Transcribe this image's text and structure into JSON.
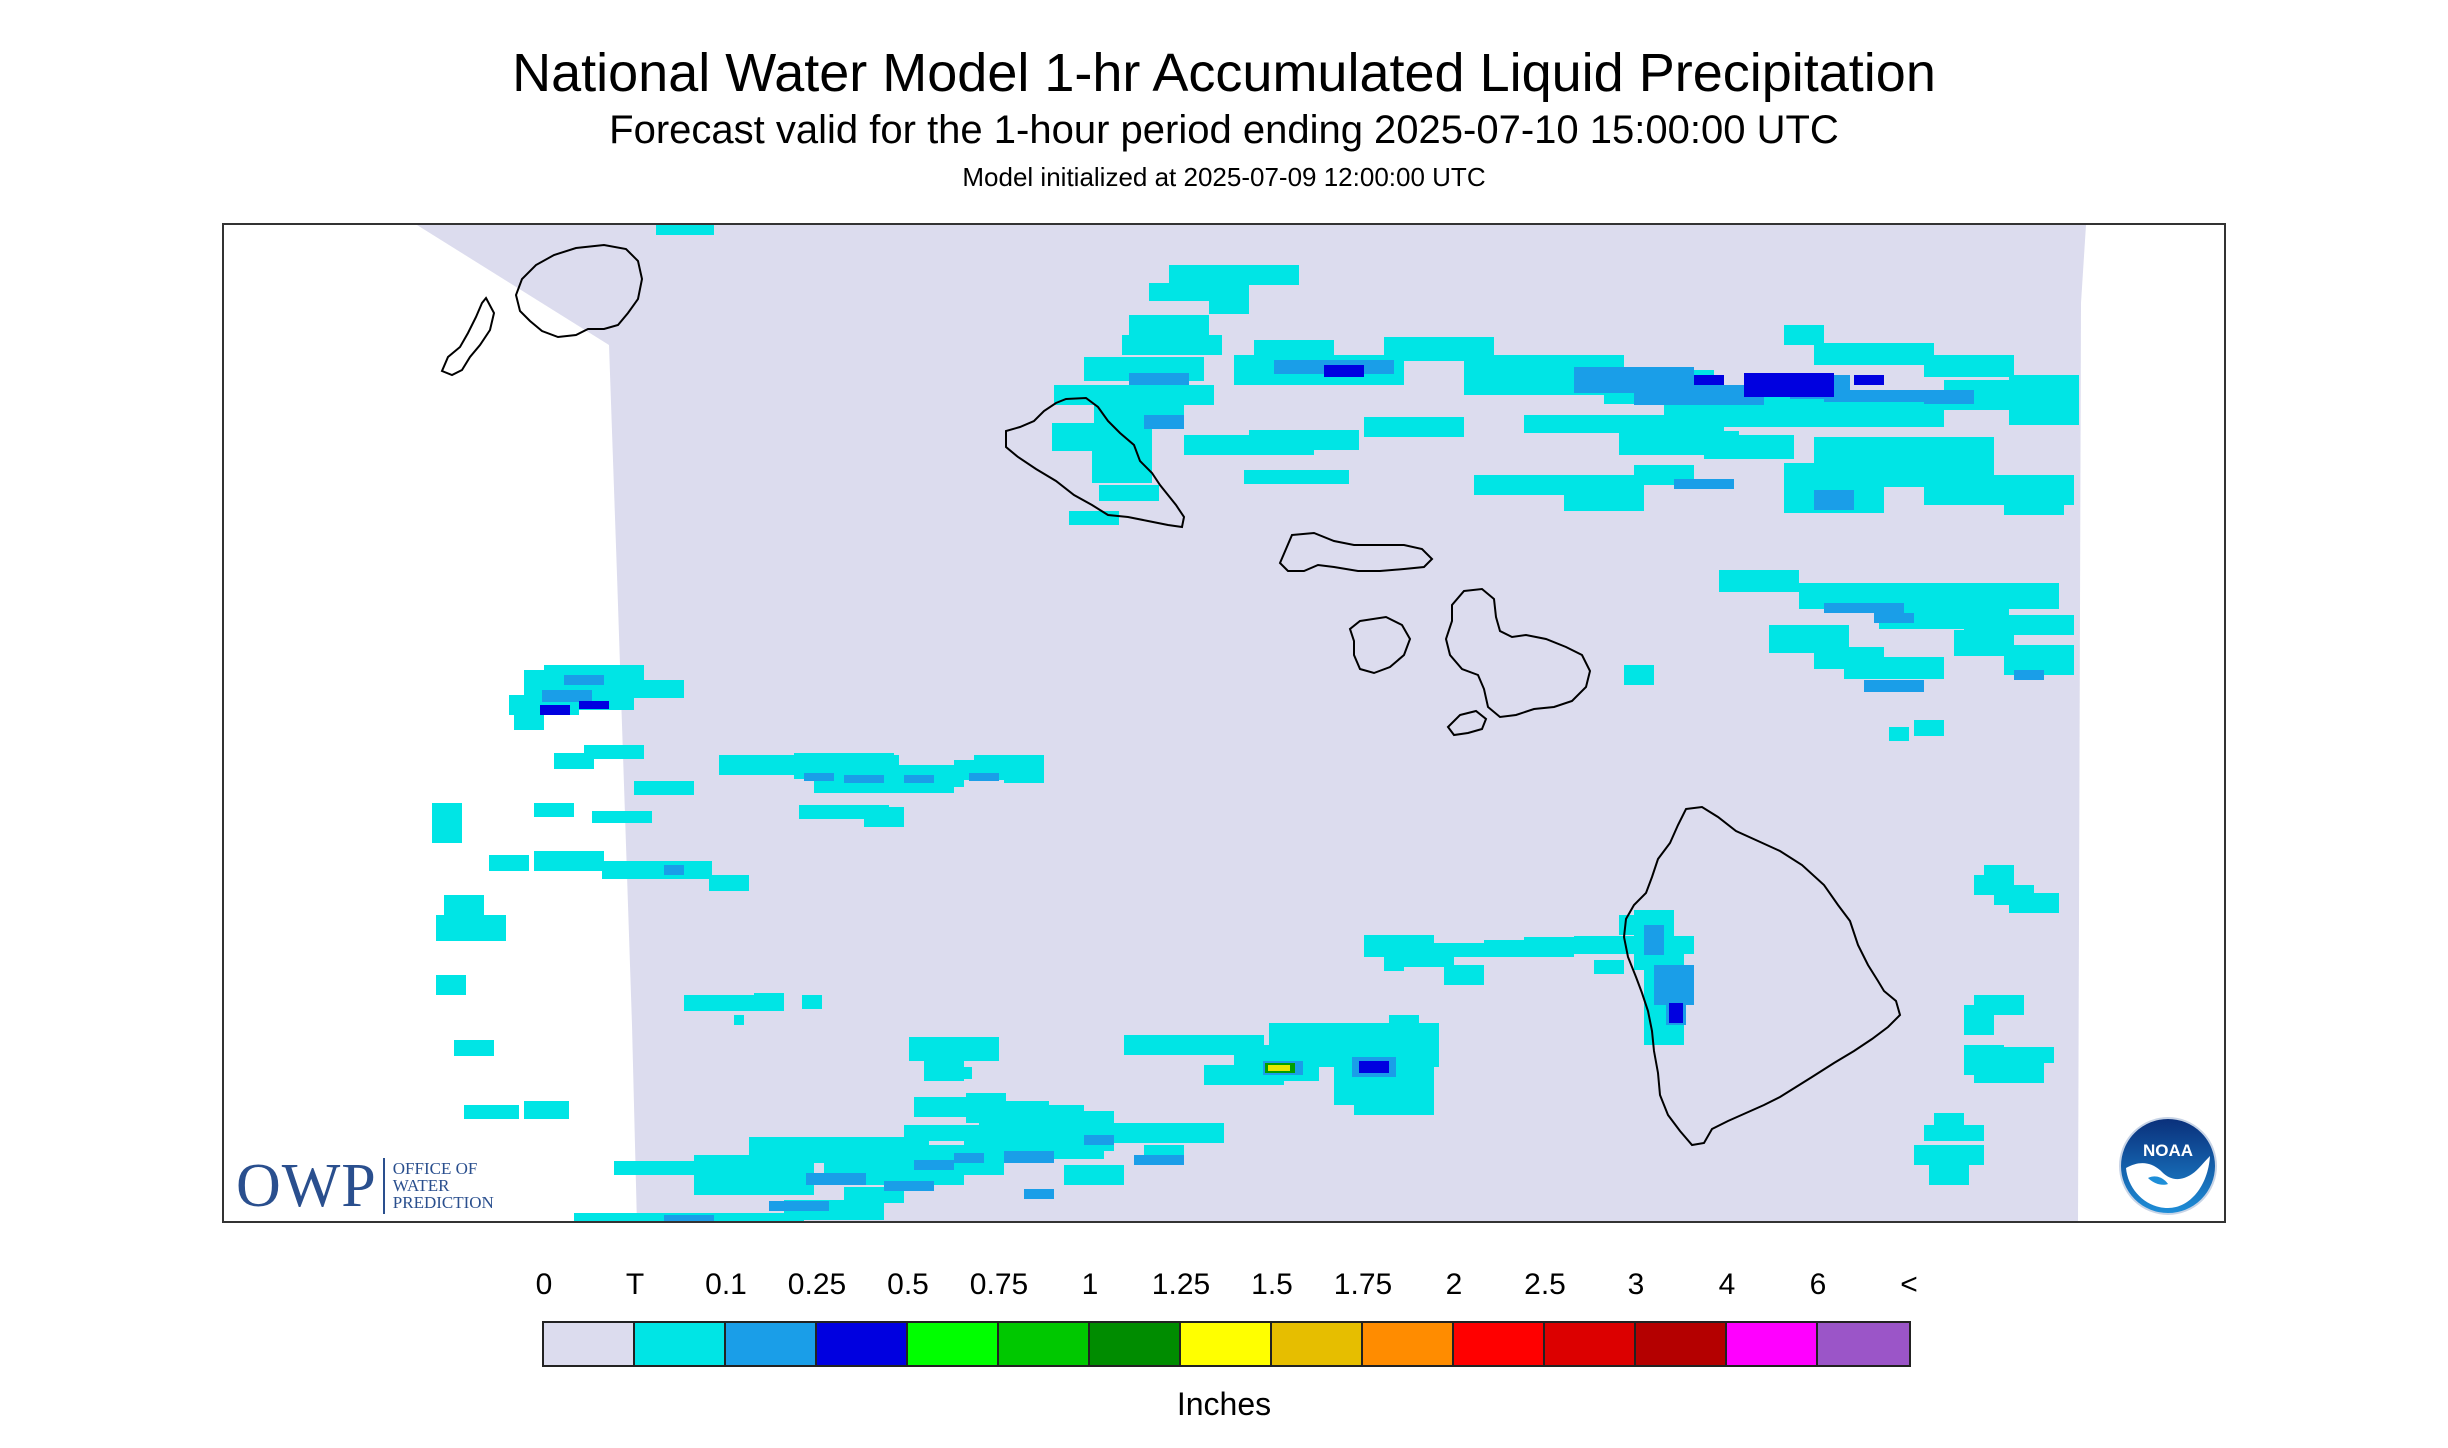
{
  "header": {
    "title": "National Water Model 1-hr Accumulated Liquid Precipitation",
    "subtitle": "Forecast valid for the 1-hour period ending 2025-07-10 15:00:00 UTC",
    "init_text": "Model initialized at 2025-07-09 12:00:00 UTC"
  },
  "map": {
    "region": "Hawaiian Islands",
    "background_color": "#dcdcee",
    "coastline_color": "#000000",
    "precip_colors": {
      "trace": "#00e5e5",
      "light": "#1a9ee8",
      "moderate": "#0000e0",
      "heavy": "#00a000",
      "very_heavy": "#e6e600"
    }
  },
  "logos": {
    "owp": {
      "letters": "OWP",
      "lines": [
        "OFFICE OF",
        "WATER",
        "PREDICTION"
      ]
    },
    "noaa": {
      "text": "NOAA",
      "icon": "noaa-bird-icon"
    }
  },
  "legend": {
    "labels": [
      "0",
      "T",
      "0.1",
      "0.25",
      "0.5",
      "0.75",
      "1",
      "1.25",
      "1.5",
      "1.75",
      "2",
      "2.5",
      "3",
      "4",
      "6",
      "<"
    ],
    "colors": [
      "#dcdcee",
      "#00e5e5",
      "#1a9ee8",
      "#0000e0",
      "#00ff00",
      "#00c800",
      "#008c00",
      "#ffff00",
      "#e6be00",
      "#ff8c00",
      "#ff0000",
      "#dc0000",
      "#b40000",
      "#ff00ff",
      "#9b55c8"
    ],
    "units": "Inches"
  }
}
